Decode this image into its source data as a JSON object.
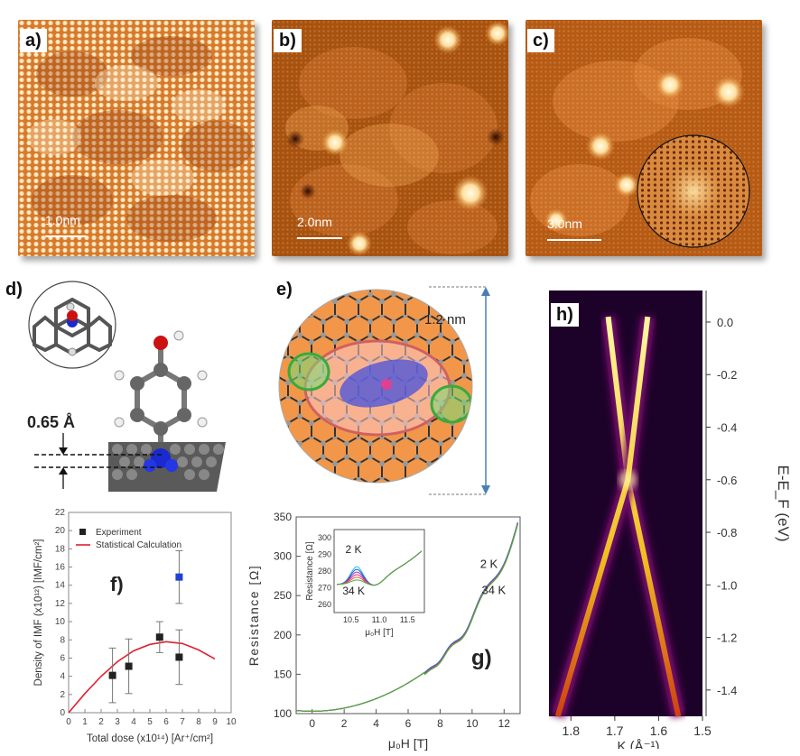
{
  "panels": {
    "a": {
      "label": "a)",
      "scale": "1.0nm"
    },
    "b": {
      "label": "b)",
      "scale": "2.0nm"
    },
    "c": {
      "label": "c)",
      "scale": "3.0nm"
    },
    "d": {
      "label": "d)",
      "height": "0.65 Å"
    },
    "e": {
      "label": "e)",
      "size": "1.2 nm"
    },
    "f": {
      "label": "f)"
    },
    "g": {
      "label": "g)"
    },
    "h": {
      "label": "h)"
    }
  },
  "chart_data": [
    {
      "id": "f",
      "type": "scatter",
      "xlabel": "Total dose (x10¹⁴) [Ar⁺/cm²]",
      "ylabel": "Density of IMF (x10¹²) [IMF/cm²]",
      "xlim": [
        0,
        10
      ],
      "ylim": [
        0,
        22
      ],
      "xticks": [
        0,
        1,
        2,
        3,
        4,
        5,
        6,
        7,
        8,
        9,
        10
      ],
      "yticks": [
        0,
        2,
        4,
        6,
        8,
        10,
        12,
        14,
        16,
        18,
        20,
        22
      ],
      "legend": [
        "Experiment",
        "Statistical Calculation"
      ],
      "legend_position": "top-left",
      "series": [
        {
          "name": "Experiment",
          "color": "#222222",
          "points": [
            {
              "x": 2.7,
              "y": 4.1,
              "err": 3.0
            },
            {
              "x": 3.7,
              "y": 5.1,
              "err": 3.0
            },
            {
              "x": 5.6,
              "y": 8.3,
              "err": 1.7
            },
            {
              "x": 6.8,
              "y": 6.1,
              "err": 3.0
            }
          ]
        },
        {
          "color": "#1f3fd6",
          "points": [
            {
              "x": 6.8,
              "y": 14.9,
              "err": 2.9
            }
          ]
        },
        {
          "name": "Statistical Calculation",
          "color": "#e02030",
          "line": [
            [
              0,
              0
            ],
            [
              1,
              2.1
            ],
            [
              2,
              4.0
            ],
            [
              3,
              5.6
            ],
            [
              4,
              6.8
            ],
            [
              5,
              7.5
            ],
            [
              6,
              7.8
            ],
            [
              7,
              7.6
            ],
            [
              8,
              6.9
            ],
            [
              9,
              5.9
            ]
          ]
        }
      ]
    },
    {
      "id": "g",
      "type": "line",
      "xlabel": "μ₀H [T]",
      "ylabel": "Resistance [Ω]",
      "xlim": [
        -1,
        13
      ],
      "ylim": [
        100,
        350
      ],
      "xticks": [
        0,
        2,
        4,
        6,
        8,
        10,
        12
      ],
      "yticks": [
        100,
        150,
        200,
        250,
        300,
        350
      ],
      "annotations": [
        "2 K",
        "34 K"
      ],
      "inset": {
        "xlabel": "μ₀H [T]",
        "ylabel": "Resistance [Ω]",
        "xlim": [
          10.2,
          11.8
        ],
        "ylim": [
          255,
          305
        ],
        "xticks": [
          10.5,
          11.0,
          11.5
        ],
        "yticks": [
          260,
          270,
          280,
          290,
          300
        ],
        "annotations": [
          "2 K",
          "34 K"
        ]
      }
    },
    {
      "id": "h",
      "type": "heatmap",
      "xlabel": "K (Å⁻¹)",
      "ylabel": "E-E_F (eV)",
      "xticks": [
        1.8,
        1.7,
        1.6,
        1.5
      ],
      "yticks": [
        0.0,
        -0.2,
        -0.4,
        -0.6,
        -0.8,
        -1.0,
        -1.2,
        -1.4
      ]
    }
  ]
}
